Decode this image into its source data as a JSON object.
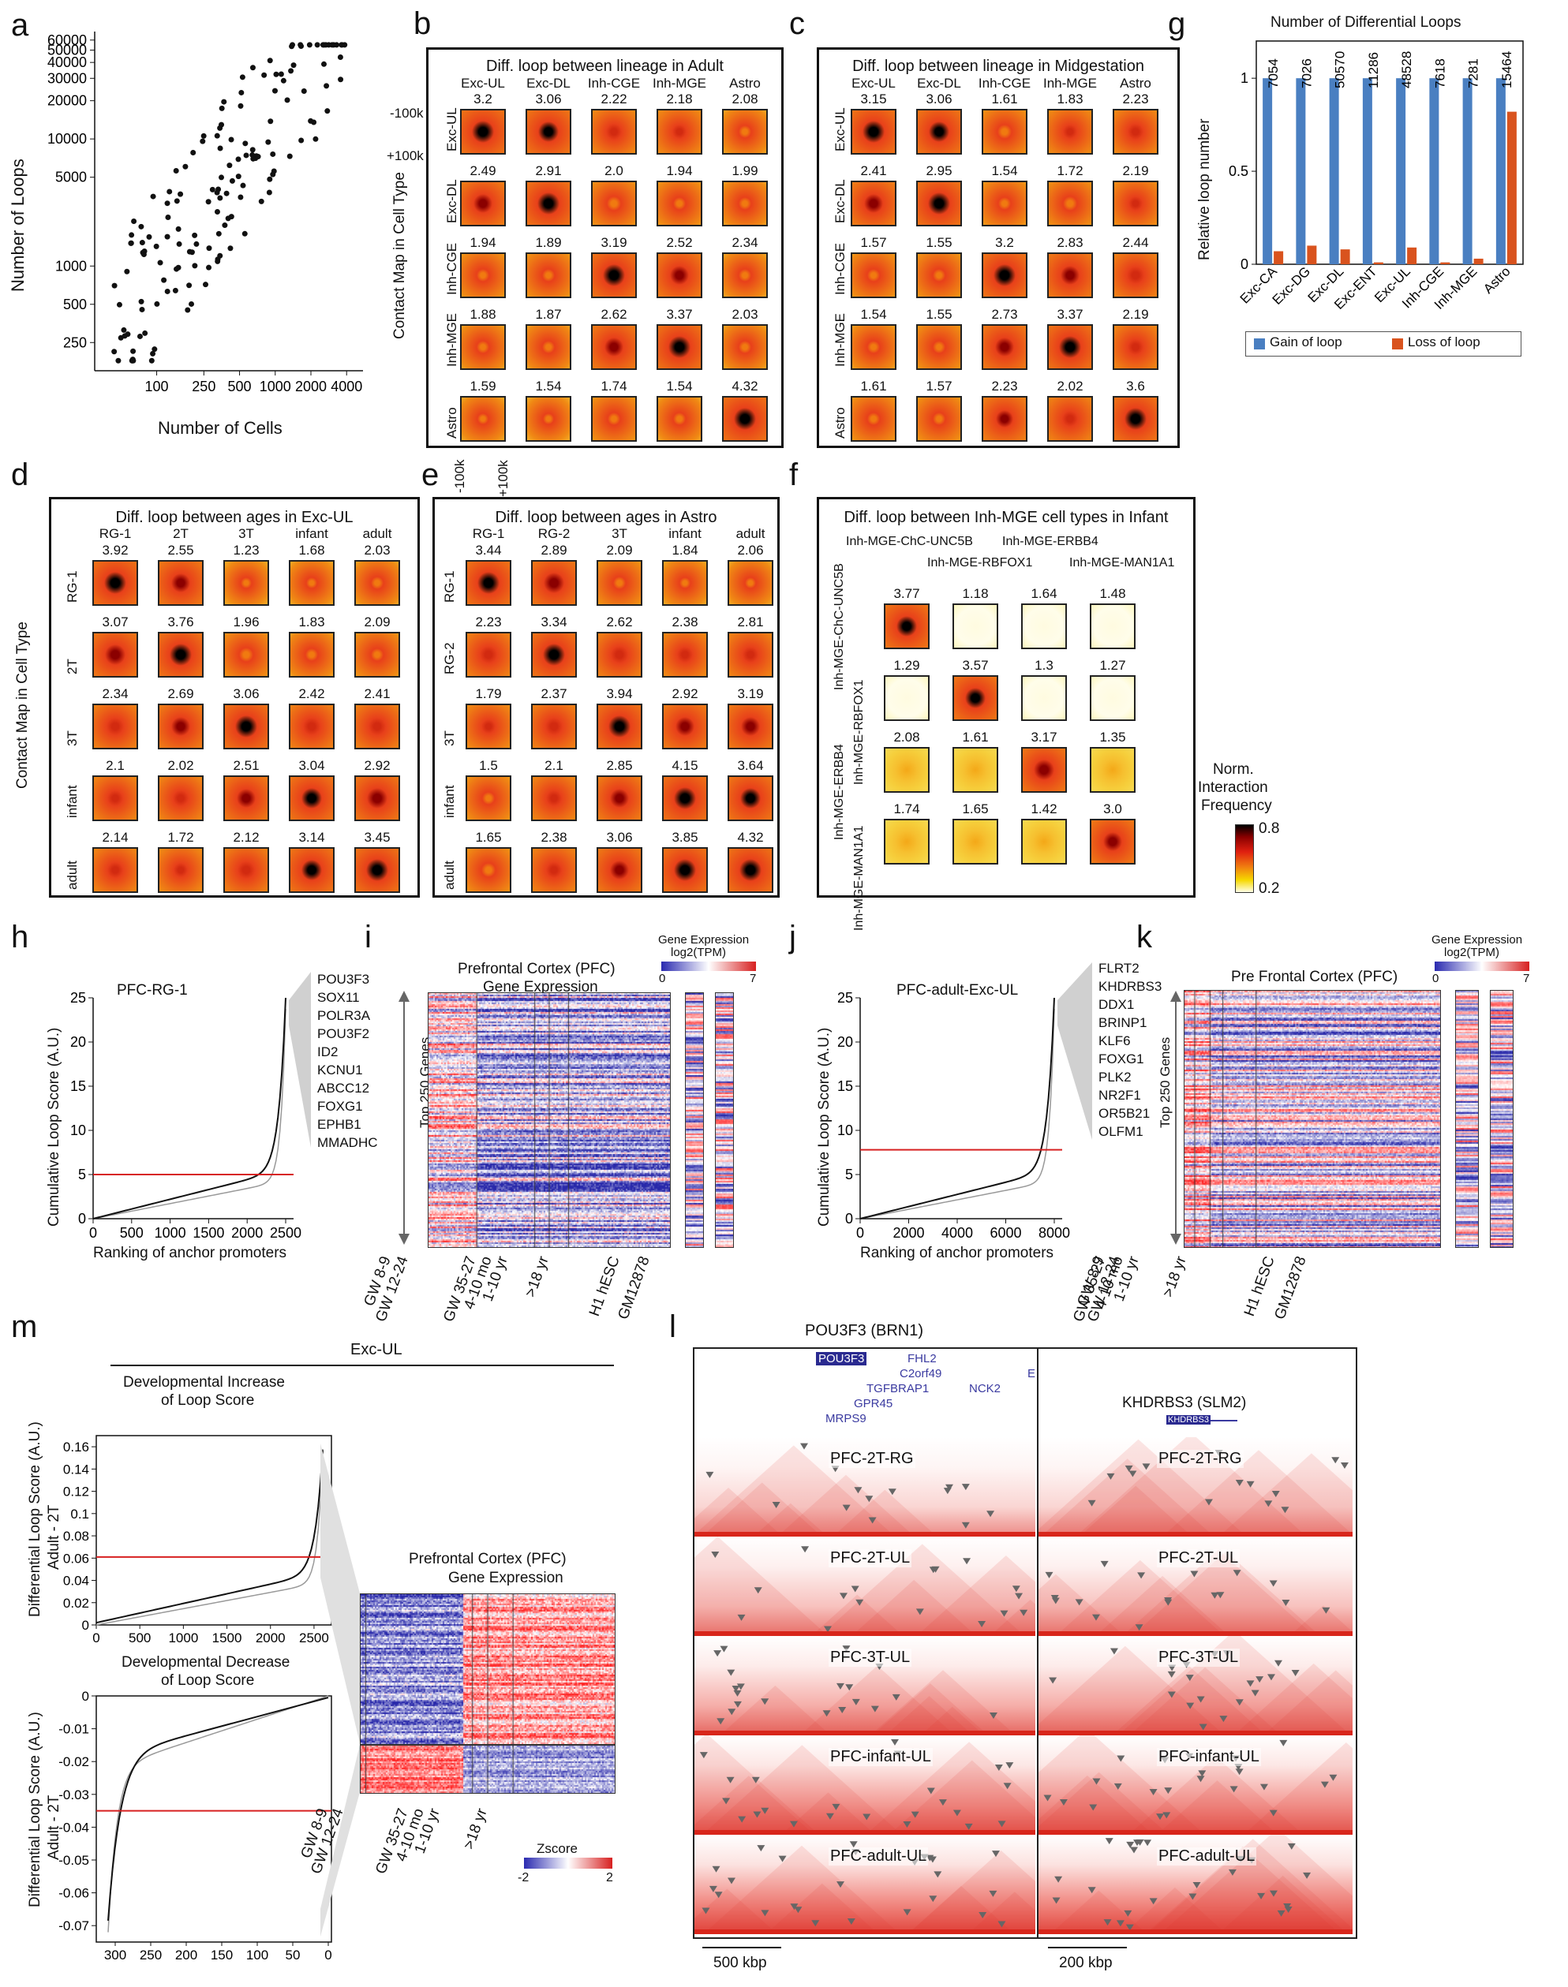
{
  "panel_labels": {
    "a": "a",
    "b": "b",
    "c": "c",
    "d": "d",
    "e": "e",
    "f": "f",
    "g": "g",
    "h": "h",
    "i": "i",
    "j": "j",
    "k": "k",
    "l": "l",
    "m": "m"
  },
  "panel_a": {
    "ylabel": "Number of Loops",
    "xlabel": "Number of Cells",
    "yticks": [
      "60000",
      "50000",
      "40000",
      "30000",
      "20000",
      "10000",
      "5000",
      "1000",
      "500",
      "250"
    ],
    "xticks": [
      "100",
      "250",
      "500",
      "1000",
      "2000",
      "4000"
    ]
  },
  "contact_axis": {
    "ylabel": "Contact Map in Cell Type",
    "minus": "-100k",
    "plus": "+100k"
  },
  "panel_b": {
    "title": "Diff. loop between lineage in Adult",
    "cols": [
      "Exc-UL",
      "Exc-DL",
      "Inh-CGE",
      "Inh-MGE",
      "Astro"
    ],
    "rows": [
      "Exc-UL",
      "Exc-DL",
      "Inh-CGE",
      "Inh-MGE",
      "Astro"
    ],
    "values": [
      [
        "3.2",
        "3.06",
        "2.22",
        "2.18",
        "2.08"
      ],
      [
        "2.49",
        "2.91",
        "2.0",
        "1.94",
        "1.99"
      ],
      [
        "1.94",
        "1.89",
        "3.19",
        "2.52",
        "2.34"
      ],
      [
        "1.88",
        "1.87",
        "2.62",
        "3.37",
        "2.03"
      ],
      [
        "1.59",
        "1.54",
        "1.74",
        "1.54",
        "4.32"
      ]
    ],
    "intensity": [
      [
        0.95,
        0.9,
        0.45,
        0.4,
        0.2
      ],
      [
        0.7,
        0.95,
        0.35,
        0.3,
        0.25
      ],
      [
        0.3,
        0.3,
        0.95,
        0.75,
        0.2
      ],
      [
        0.25,
        0.25,
        0.75,
        0.95,
        0.2
      ],
      [
        0.15,
        0.1,
        0.3,
        0.2,
        1.0
      ]
    ]
  },
  "panel_c": {
    "title": "Diff. loop between lineage in Midgestation",
    "cols": [
      "Exc-UL",
      "Exc-DL",
      "Inh-CGE",
      "Inh-MGE",
      "Astro"
    ],
    "rows": [
      "Exc-UL",
      "Exc-DL",
      "Inh-CGE",
      "Inh-MGE",
      "Astro"
    ],
    "values": [
      [
        "3.15",
        "3.06",
        "1.61",
        "1.83",
        "2.23"
      ],
      [
        "2.41",
        "2.95",
        "1.54",
        "1.72",
        "2.19"
      ],
      [
        "1.57",
        "1.55",
        "3.2",
        "2.83",
        "2.44"
      ],
      [
        "1.54",
        "1.55",
        "2.73",
        "3.37",
        "2.19"
      ],
      [
        "1.61",
        "1.57",
        "2.23",
        "2.02",
        "3.6"
      ]
    ],
    "intensity": [
      [
        0.95,
        0.9,
        0.35,
        0.4,
        0.45
      ],
      [
        0.7,
        0.95,
        0.3,
        0.35,
        0.4
      ],
      [
        0.3,
        0.3,
        0.95,
        0.8,
        0.6
      ],
      [
        0.25,
        0.3,
        0.8,
        0.95,
        0.5
      ],
      [
        0.3,
        0.3,
        0.65,
        0.55,
        0.95
      ]
    ]
  },
  "panel_d": {
    "title": "Diff. loop between ages in Exc-UL",
    "cols": [
      "RG-1",
      "2T",
      "3T",
      "infant",
      "adult"
    ],
    "rows": [
      "RG-1",
      "2T",
      "3T",
      "infant",
      "adult"
    ],
    "values": [
      [
        "3.92",
        "2.55",
        "1.23",
        "1.68",
        "2.03"
      ],
      [
        "3.07",
        "3.76",
        "1.96",
        "1.83",
        "2.09"
      ],
      [
        "2.34",
        "2.69",
        "3.06",
        "2.42",
        "2.41"
      ],
      [
        "2.1",
        "2.02",
        "2.51",
        "3.04",
        "2.92"
      ],
      [
        "2.14",
        "1.72",
        "2.12",
        "3.14",
        "3.45"
      ]
    ],
    "intensity": [
      [
        1.0,
        0.8,
        0.1,
        0.15,
        0.2
      ],
      [
        0.85,
        0.95,
        0.35,
        0.25,
        0.3
      ],
      [
        0.6,
        0.7,
        0.95,
        0.6,
        0.6
      ],
      [
        0.5,
        0.5,
        0.75,
        0.9,
        0.85
      ],
      [
        0.5,
        0.4,
        0.6,
        0.9,
        0.95
      ]
    ]
  },
  "panel_e": {
    "title": "Diff. loop between ages in Astro",
    "cols": [
      "RG-1",
      "RG-2",
      "3T",
      "infant",
      "adult"
    ],
    "rows": [
      "RG-1",
      "RG-2",
      "3T",
      "infant",
      "adult"
    ],
    "values": [
      [
        "3.44",
        "2.89",
        "2.09",
        "1.84",
        "2.06"
      ],
      [
        "2.23",
        "3.34",
        "2.62",
        "2.38",
        "2.81"
      ],
      [
        "1.79",
        "2.37",
        "3.94",
        "2.92",
        "3.19"
      ],
      [
        "1.5",
        "2.1",
        "2.85",
        "4.15",
        "3.64"
      ],
      [
        "1.65",
        "2.38",
        "3.06",
        "3.85",
        "4.32"
      ]
    ],
    "intensity": [
      [
        0.95,
        0.85,
        0.3,
        0.15,
        0.15
      ],
      [
        0.6,
        0.95,
        0.6,
        0.45,
        0.55
      ],
      [
        0.4,
        0.6,
        1.0,
        0.75,
        0.8
      ],
      [
        0.3,
        0.5,
        0.7,
        1.0,
        0.9
      ],
      [
        0.35,
        0.55,
        0.8,
        0.95,
        1.0
      ]
    ]
  },
  "panel_f": {
    "title": "Diff. loop between Inh-MGE cell types in Infant",
    "cols": [
      "Inh-MGE-ChC-UNC5B",
      "Inh-MGE-RBFOX1",
      "Inh-MGE-ERBB4",
      "Inh-MGE-MAN1A1"
    ],
    "rows": [
      "Inh-MGE-ChC-UNC5B",
      "Inh-MGE-RBFOX1",
      "Inh-MGE-ERBB4",
      "Inh-MGE-MAN1A1"
    ],
    "values": [
      [
        "3.77",
        "1.18",
        "1.64",
        "1.48"
      ],
      [
        "1.29",
        "3.57",
        "1.3",
        "1.27"
      ],
      [
        "2.08",
        "1.61",
        "3.17",
        "1.35"
      ],
      [
        "1.74",
        "1.65",
        "1.42",
        "3.0"
      ]
    ],
    "intensity": [
      [
        0.9,
        0.0,
        0.05,
        0.0
      ],
      [
        0.05,
        0.9,
        0.05,
        0.05
      ],
      [
        0.25,
        0.15,
        0.85,
        0.1
      ],
      [
        0.2,
        0.15,
        0.1,
        0.8
      ]
    ]
  },
  "colorbar_f": {
    "title1": "Norm.",
    "title2": "Interaction",
    "title3": "Frequency",
    "max": "0.8",
    "min": "0.2"
  },
  "panel_g": {
    "chart_data": {
      "type": "bar",
      "title": "Number of Differential Loops",
      "ylabel": "Relative loop number",
      "categories": [
        "Exc-CA",
        "Exc-DG",
        "Exc-DL",
        "Exc-ENT",
        "Exc-UL",
        "Inh-CGE",
        "Inh-MGE",
        "Astro"
      ],
      "counts": [
        "7054",
        "7026",
        "50570",
        "11286",
        "48528",
        "7618",
        "7281",
        "15464"
      ],
      "series": [
        {
          "name": "Gain of loop",
          "color": "#4a7fc1",
          "values": [
            1,
            1,
            1,
            1,
            1,
            1,
            1,
            1
          ]
        },
        {
          "name": "Loss of loop",
          "color": "#d9531e",
          "values": [
            0.07,
            0.1,
            0.08,
            0.01,
            0.09,
            0.01,
            0.03,
            0.82
          ]
        }
      ],
      "yticks": [
        "0",
        "0.5",
        "1"
      ],
      "ylim": [
        0,
        1.2
      ]
    }
  },
  "panel_h": {
    "title": "PFC-RG-1",
    "ylabel": "Cumulative Loop Score (A.U.)",
    "xlabel": "Ranking of anchor promoters",
    "yticks": [
      "0",
      "5",
      "10",
      "15",
      "20",
      "25"
    ],
    "xticks": [
      "0",
      "500",
      "1000",
      "1500",
      "2000",
      "2500"
    ],
    "genes": [
      "POU3F3",
      "SOX11",
      "POLR3A",
      "POU3F2",
      "ID2",
      "KCNU1",
      "ABCC12",
      "FOXG1",
      "EPHB1",
      "MMADHC"
    ]
  },
  "panel_i": {
    "title1": "Prefrontal Cortex (PFC)",
    "title2": "Gene Expression",
    "side": "Top 250 Genes",
    "cb_title1": "Gene Expression",
    "cb_title2": "log2(TPM)",
    "cb_min": "0",
    "cb_max": "7",
    "xlabels": [
      "GW 8-9",
      "GW 12-24",
      "GW 35-27",
      "4-10 mo",
      "1-10 yr",
      ">18 yr",
      "H1 hESC",
      "GM12878"
    ]
  },
  "panel_j": {
    "title": "PFC-adult-Exc-UL",
    "ylabel": "Cumulative Loop Score (A.U.)",
    "xlabel": "Ranking of anchor promoters",
    "yticks": [
      "0",
      "5",
      "10",
      "15",
      "20",
      "25"
    ],
    "xticks": [
      "0",
      "2000",
      "4000",
      "6000",
      "8000"
    ],
    "genes": [
      "FLRT2",
      "KHDRBS3",
      "DDX1",
      "BRINP1",
      "KLF6",
      "FOXG1",
      "PLK2",
      "NR2F1",
      "OR5B21",
      "OLFM1"
    ]
  },
  "panel_k": {
    "title": "Pre Frontal Cortex (PFC)",
    "side": "Top 250 Genes",
    "cb_title1": "Gene Expression",
    "cb_title2": "log2(TPM)",
    "cb_min": "0",
    "cb_max": "7",
    "xlabels": [
      "GW 8-9",
      "GW 12-24",
      "GW 35-27",
      "4-10 mo",
      "1-10 yr",
      ">18 yr",
      "H1 hESC",
      "GM12878"
    ]
  },
  "panel_l": {
    "title": "POU3F3 (BRN1)",
    "title2": "KHDRBS3 (SLM2)",
    "genes_left": [
      "POU3F3",
      "FHL2",
      "C2orf49",
      "TGFBRAP1",
      "NCK2",
      "GPR45",
      "MRPS9",
      "E"
    ],
    "gene_right": "KHDRBS3",
    "rows": [
      "PFC-2T-RG",
      "PFC-2T-UL",
      "PFC-3T-UL",
      "PFC-infant-UL",
      "PFC-adult-UL"
    ],
    "scale_left": "500 kbp",
    "scale_right": "200 kbp"
  },
  "panel_m": {
    "header": "Exc-UL",
    "top_title1": "Developmental Increase",
    "top_title2": "of Loop Score",
    "bot_title1": "Developmental Decrease",
    "bot_title2": "of Loop Score",
    "ylabel1": "Differential Loop Score (A.U.)",
    "ylabel2": "Adult - 2T",
    "top_yticks": [
      "0.16",
      "0.14",
      "0.12",
      "0.1",
      "0.08",
      "0.06",
      "0.04",
      "0.02",
      "0"
    ],
    "top_xticks": [
      "0",
      "500",
      "1000",
      "1500",
      "2000",
      "2500"
    ],
    "bot_yticks": [
      "0",
      "-0.01",
      "-0.02",
      "-0.03",
      "-0.04",
      "-0.05",
      "-0.06",
      "-0.07"
    ],
    "bot_xticks": [
      "300",
      "250",
      "200",
      "150",
      "100",
      "50",
      "0"
    ],
    "heat_title1": "Prefrontal Cortex (PFC)",
    "heat_title2": "Gene Expression",
    "xlabels": [
      "GW 8-9",
      "GW 12-24",
      "GW 35-27",
      "4-10 mo",
      "1-10 yr",
      ">18 yr"
    ],
    "cb_title": "Zscore",
    "cb_min": "-2",
    "cb_max": "2"
  }
}
